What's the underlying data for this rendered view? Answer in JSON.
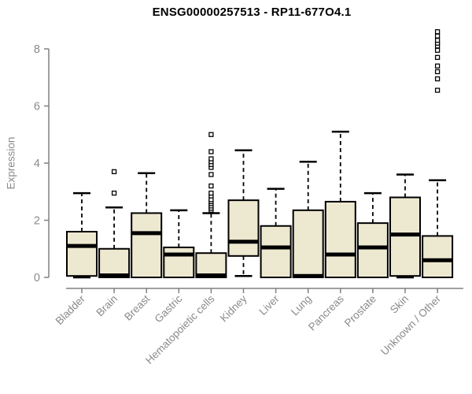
{
  "colors": {
    "background": "#FFFFFF",
    "box_fill": "#EDE8D0",
    "box_stroke": "#000000",
    "median": "#000000",
    "whisker": "#000000",
    "outlier_stroke": "#000000",
    "axis": "#808080",
    "tick_label": "#8A8A8A",
    "title": "#000000"
  },
  "chart_data": {
    "type": "boxplot",
    "title": "ENSG00000257513 - RP11-677O4.1",
    "xlabel": "",
    "ylabel": "Expression",
    "ylim": [
      0,
      8.7
    ],
    "y_ticks": [
      0,
      2,
      4,
      6,
      8
    ],
    "grid": false,
    "legend": "none",
    "categories": [
      "Bladder",
      "Brain",
      "Breast",
      "Gastric",
      "Hematopoietic cells",
      "Kidney",
      "Liver",
      "Lung",
      "Pancreas",
      "Prostate",
      "Skin",
      "Unknown / Other"
    ],
    "boxes": [
      {
        "category": "Bladder",
        "whisker_low": 0.0,
        "q1": 0.05,
        "median": 1.1,
        "q3": 1.6,
        "whisker_high": 2.95,
        "outliers": []
      },
      {
        "category": "Brain",
        "whisker_low": 0.0,
        "q1": 0.0,
        "median": 0.07,
        "q3": 1.0,
        "whisker_high": 2.45,
        "outliers": [
          2.95,
          3.7
        ]
      },
      {
        "category": "Breast",
        "whisker_low": 0.0,
        "q1": 0.0,
        "median": 1.55,
        "q3": 2.25,
        "whisker_high": 3.65,
        "outliers": []
      },
      {
        "category": "Gastric",
        "whisker_low": 0.0,
        "q1": 0.0,
        "median": 0.8,
        "q3": 1.05,
        "whisker_high": 2.35,
        "outliers": []
      },
      {
        "category": "Hematopoietic cells",
        "whisker_low": 0.0,
        "q1": 0.0,
        "median": 0.07,
        "q3": 0.85,
        "whisker_high": 2.25,
        "outliers": [
          2.35,
          2.42,
          2.5,
          2.58,
          2.65,
          2.72,
          2.85,
          2.95,
          3.2,
          3.6,
          3.85,
          3.95,
          4.05,
          4.15,
          4.4,
          5.0
        ]
      },
      {
        "category": "Kidney",
        "whisker_low": 0.05,
        "q1": 0.75,
        "median": 1.25,
        "q3": 2.7,
        "whisker_high": 4.45,
        "outliers": []
      },
      {
        "category": "Liver",
        "whisker_low": 0.0,
        "q1": 0.0,
        "median": 1.05,
        "q3": 1.8,
        "whisker_high": 3.1,
        "outliers": []
      },
      {
        "category": "Lung",
        "whisker_low": 0.0,
        "q1": 0.0,
        "median": 0.05,
        "q3": 2.35,
        "whisker_high": 4.05,
        "outliers": []
      },
      {
        "category": "Pancreas",
        "whisker_low": 0.0,
        "q1": 0.0,
        "median": 0.8,
        "q3": 2.65,
        "whisker_high": 5.1,
        "outliers": []
      },
      {
        "category": "Prostate",
        "whisker_low": 0.0,
        "q1": 0.0,
        "median": 1.05,
        "q3": 1.9,
        "whisker_high": 2.95,
        "outliers": []
      },
      {
        "category": "Skin",
        "whisker_low": 0.0,
        "q1": 0.05,
        "median": 1.5,
        "q3": 2.8,
        "whisker_high": 3.6,
        "outliers": []
      },
      {
        "category": "Unknown / Other",
        "whisker_low": 0.0,
        "q1": 0.0,
        "median": 0.6,
        "q3": 1.45,
        "whisker_high": 3.4,
        "outliers": [
          6.55,
          6.95,
          7.2,
          7.4,
          7.7,
          7.95,
          8.1,
          8.2,
          8.3,
          8.45,
          8.6
        ]
      }
    ]
  }
}
